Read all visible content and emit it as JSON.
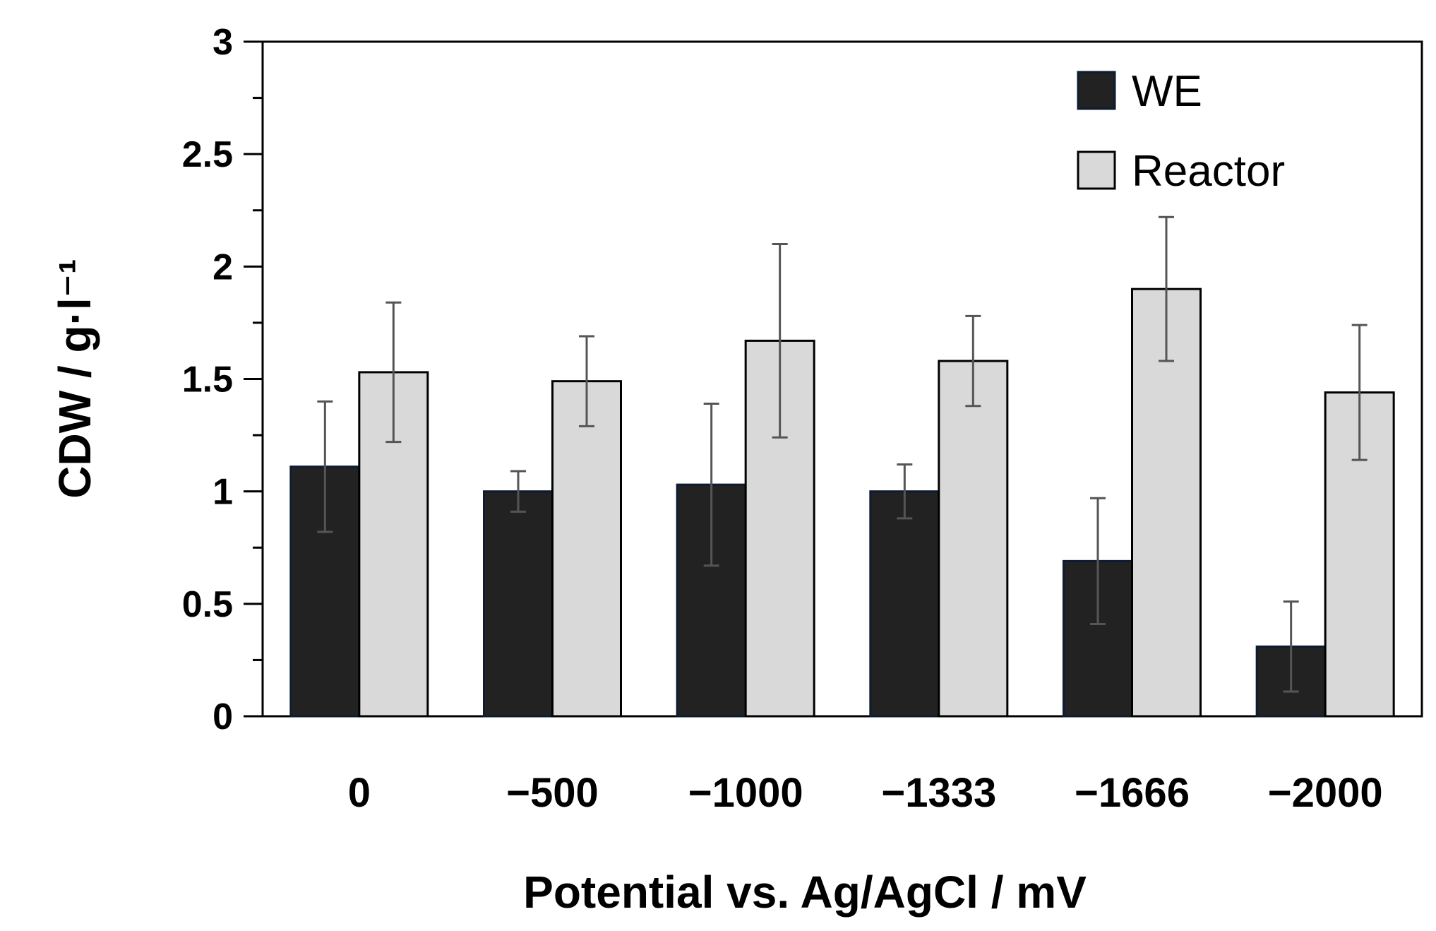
{
  "chart_data": {
    "type": "bar",
    "title": "",
    "xlabel": "Potential vs. Ag/AgCl / mV",
    "ylabel": "CDW / g·l⁻¹",
    "categories": [
      "0",
      "−500",
      "−1000",
      "−1333",
      "−1666",
      "−2000"
    ],
    "ylim": [
      0,
      3
    ],
    "yticks": [
      "0",
      "0.5",
      "1",
      "1.5",
      "2",
      "2.5",
      "3"
    ],
    "grid": false,
    "legend_placement": "top-right",
    "series": [
      {
        "name": "WE",
        "color": "#222222",
        "values": [
          1.11,
          1.0,
          1.03,
          1.0,
          0.69,
          0.31
        ],
        "errors": [
          0.29,
          0.09,
          0.36,
          0.12,
          0.28,
          0.2
        ]
      },
      {
        "name": "Reactor",
        "color": "#d9d9d9",
        "values": [
          1.53,
          1.49,
          1.67,
          1.58,
          1.9,
          1.44
        ],
        "errors": [
          0.31,
          0.2,
          0.43,
          0.2,
          0.32,
          0.3
        ]
      }
    ]
  }
}
